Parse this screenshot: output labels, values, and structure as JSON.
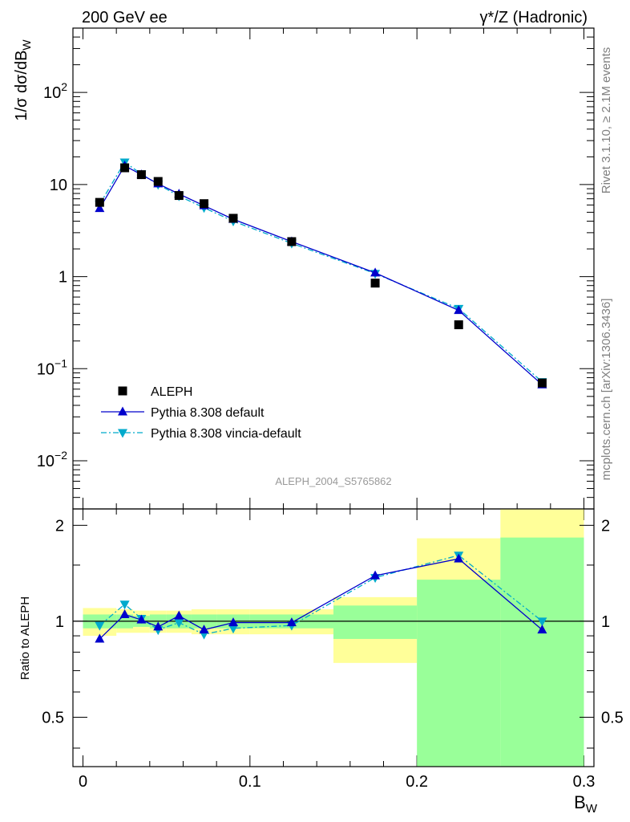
{
  "header": {
    "left": "200 GeV ee",
    "right": "γ*/Z (Hadronic)"
  },
  "side_labels": {
    "rivet": "Rivet 3.1.10, ≥ 2.1M events",
    "mcplots": "mcplots.cern.ch [arXiv:1306.3436]"
  },
  "watermark": "ALEPH_2004_S5765862",
  "colors": {
    "data": "#000000",
    "pythia_default": "#0000cc",
    "pythia_vincia": "#00aacc",
    "band_inner": "#99ff99",
    "band_outer": "#ffff99"
  },
  "chart_data": [
    {
      "type": "scatter",
      "title": "",
      "xlabel": "B_W",
      "ylabel": "1/σ dσ/dB_W",
      "y_scale": "log",
      "xlim": [
        -0.006,
        0.306
      ],
      "ylim": [
        0.003,
        500
      ],
      "grid": false,
      "legend_position": "bottom-left",
      "y_tick_labels": [
        "10^-2",
        "10^-1",
        "1",
        "10",
        "10^2"
      ],
      "x": [
        0.01,
        0.025,
        0.035,
        0.045,
        0.0575,
        0.0725,
        0.09,
        0.125,
        0.175,
        0.225,
        0.275
      ],
      "series": [
        {
          "name": "ALEPH",
          "marker": "square",
          "values": [
            6.4,
            15.2,
            12.8,
            10.8,
            7.6,
            6.2,
            4.3,
            2.4,
            0.85,
            0.3,
            0.07
          ]
        },
        {
          "name": "Pythia 8.308 default",
          "marker": "triangle-up",
          "line": "solid",
          "values": [
            5.5,
            16.0,
            12.8,
            10.2,
            7.9,
            5.9,
            4.2,
            2.4,
            1.1,
            0.43,
            0.067
          ]
        },
        {
          "name": "Pythia 8.308 vincia-default",
          "marker": "triangle-down",
          "line": "dash-dot",
          "values": [
            6.1,
            17.5,
            13.0,
            10.0,
            7.5,
            5.6,
            4.0,
            2.3,
            1.08,
            0.45,
            0.072
          ]
        }
      ]
    },
    {
      "type": "line",
      "title": "",
      "xlabel": "B_W",
      "ylabel": "Ratio to ALEPH",
      "xlim": [
        -0.006,
        0.306
      ],
      "ylim": [
        0.35,
        2.25
      ],
      "grid": false,
      "x_ticks": [
        0,
        0.1,
        0.2,
        0.3
      ],
      "x_tick_labels": [
        "0",
        "0.1",
        "0.2",
        "0.3"
      ],
      "y_ticks": [
        0.5,
        1,
        2
      ],
      "y_tick_labels": [
        "0.5",
        "1",
        "2"
      ],
      "reference_line": 1,
      "x": [
        0.01,
        0.025,
        0.035,
        0.045,
        0.0575,
        0.0725,
        0.09,
        0.125,
        0.175,
        0.225,
        0.275
      ],
      "bands": {
        "bin_edges": [
          0,
          0.02,
          0.03,
          0.04,
          0.05,
          0.065,
          0.08,
          0.1,
          0.15,
          0.2,
          0.25,
          0.3
        ],
        "inner_low": [
          0.95,
          0.95,
          0.96,
          0.95,
          0.95,
          0.95,
          0.95,
          0.95,
          0.88,
          0.35,
          0.35
        ],
        "inner_high": [
          1.05,
          1.05,
          1.04,
          1.05,
          1.05,
          1.05,
          1.05,
          1.05,
          1.12,
          1.35,
          1.83
        ],
        "outer_low": [
          0.9,
          0.92,
          0.92,
          0.92,
          0.92,
          0.91,
          0.91,
          0.91,
          0.74,
          0.65,
          0.35
        ],
        "outer_high": [
          1.1,
          1.09,
          1.08,
          1.08,
          1.08,
          1.09,
          1.09,
          1.09,
          1.19,
          1.82,
          2.25
        ]
      },
      "series": [
        {
          "name": "Pythia 8.308 default",
          "marker": "triangle-up",
          "line": "solid",
          "values": [
            0.88,
            1.05,
            1.01,
            0.96,
            1.04,
            0.94,
            0.99,
            0.99,
            1.39,
            1.57,
            0.94
          ]
        },
        {
          "name": "Pythia 8.308 vincia-default",
          "marker": "triangle-down",
          "line": "dash-dot",
          "values": [
            0.97,
            1.13,
            1.02,
            0.94,
            0.99,
            0.91,
            0.95,
            0.97,
            1.37,
            1.61,
            1.0
          ]
        }
      ]
    }
  ]
}
